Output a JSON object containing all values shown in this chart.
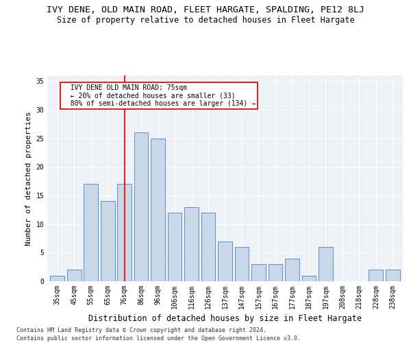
{
  "title": "IVY DENE, OLD MAIN ROAD, FLEET HARGATE, SPALDING, PE12 8LJ",
  "subtitle": "Size of property relative to detached houses in Fleet Hargate",
  "xlabel": "Distribution of detached houses by size in Fleet Hargate",
  "ylabel": "Number of detached properties",
  "footnote1": "Contains HM Land Registry data © Crown copyright and database right 2024.",
  "footnote2": "Contains public sector information licensed under the Open Government Licence v3.0.",
  "bar_labels": [
    "35sqm",
    "45sqm",
    "55sqm",
    "65sqm",
    "76sqm",
    "86sqm",
    "96sqm",
    "106sqm",
    "116sqm",
    "126sqm",
    "137sqm",
    "147sqm",
    "157sqm",
    "167sqm",
    "177sqm",
    "187sqm",
    "197sqm",
    "208sqm",
    "218sqm",
    "228sqm",
    "238sqm"
  ],
  "bar_values": [
    1,
    2,
    17,
    14,
    17,
    26,
    25,
    12,
    13,
    12,
    7,
    6,
    3,
    3,
    4,
    1,
    6,
    0,
    0,
    2,
    2
  ],
  "bar_color": "#c8d8e8",
  "bar_edge_color": "#5b8fc9",
  "annotation_line_x_label": "76sqm",
  "annotation_line_color": "red",
  "annotation_box_text": "  IVY DENE OLD MAIN ROAD: 75sqm\n  ← 20% of detached houses are smaller (33)\n  80% of semi-detached houses are larger (134) →",
  "ylim": [
    0,
    36
  ],
  "yticks": [
    0,
    5,
    10,
    15,
    20,
    25,
    30,
    35
  ],
  "bg_color": "#eef2f7",
  "grid_color": "#ffffff",
  "title_fontsize": 9.5,
  "subtitle_fontsize": 8.5,
  "xlabel_fontsize": 8.5,
  "ylabel_fontsize": 8,
  "tick_fontsize": 7,
  "annot_fontsize": 7,
  "footnote_fontsize": 6
}
